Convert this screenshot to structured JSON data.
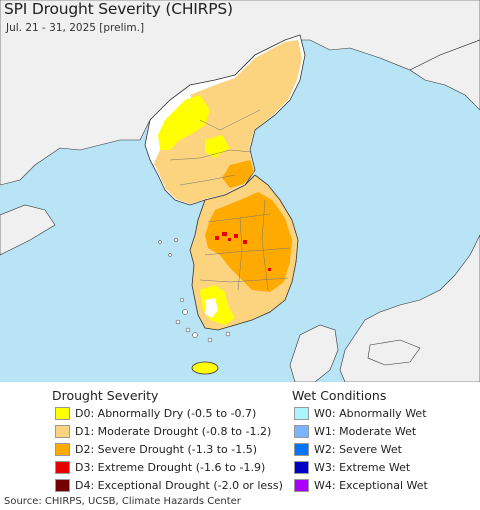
{
  "header": {
    "title": "SPI Drought Severity (CHIRPS)",
    "subtitle": "Jul. 21 - 31, 2025 [prelim.]"
  },
  "colors": {
    "ocean": "#b8e4f5",
    "land_other": "#f0f0f0",
    "no_drought": "#ffffff",
    "d0": "#ffff00",
    "d1": "#fcd37f",
    "d2": "#ffaa00",
    "d3": "#e60000",
    "d4": "#730000",
    "w0": "#aaf5ff",
    "w1": "#78b4ff",
    "w2": "#0073ff",
    "w3": "#0000c8",
    "w4": "#aa00ff"
  },
  "legend": {
    "drought_title": "Drought Severity",
    "wet_title": "Wet Conditions",
    "drought_items": [
      {
        "label": "D0: Abnormally Dry (-0.5 to -0.7)",
        "color": "#ffff00"
      },
      {
        "label": "D1: Moderate Drought (-0.8 to -1.2)",
        "color": "#fcd37f"
      },
      {
        "label": "D2: Severe Drought (-1.3 to -1.5)",
        "color": "#ffaa00"
      },
      {
        "label": "D3: Extreme Drought (-1.6 to -1.9)",
        "color": "#e60000"
      },
      {
        "label": "D4: Exceptional Drought (-2.0 or less)",
        "color": "#730000"
      }
    ],
    "wet_items": [
      {
        "label": "W0: Abnormally Wet",
        "color": "#aaf5ff"
      },
      {
        "label": "W1: Moderate Wet",
        "color": "#78b4ff"
      },
      {
        "label": "W2: Severe Wet",
        "color": "#0073ff"
      },
      {
        "label": "W3: Extreme Wet",
        "color": "#0000c8"
      },
      {
        "label": "W4: Exceptional Wet",
        "color": "#aa00ff"
      }
    ]
  },
  "footer": {
    "source": "Source: CHIRPS, UCSB, Climate Hazards Center"
  }
}
